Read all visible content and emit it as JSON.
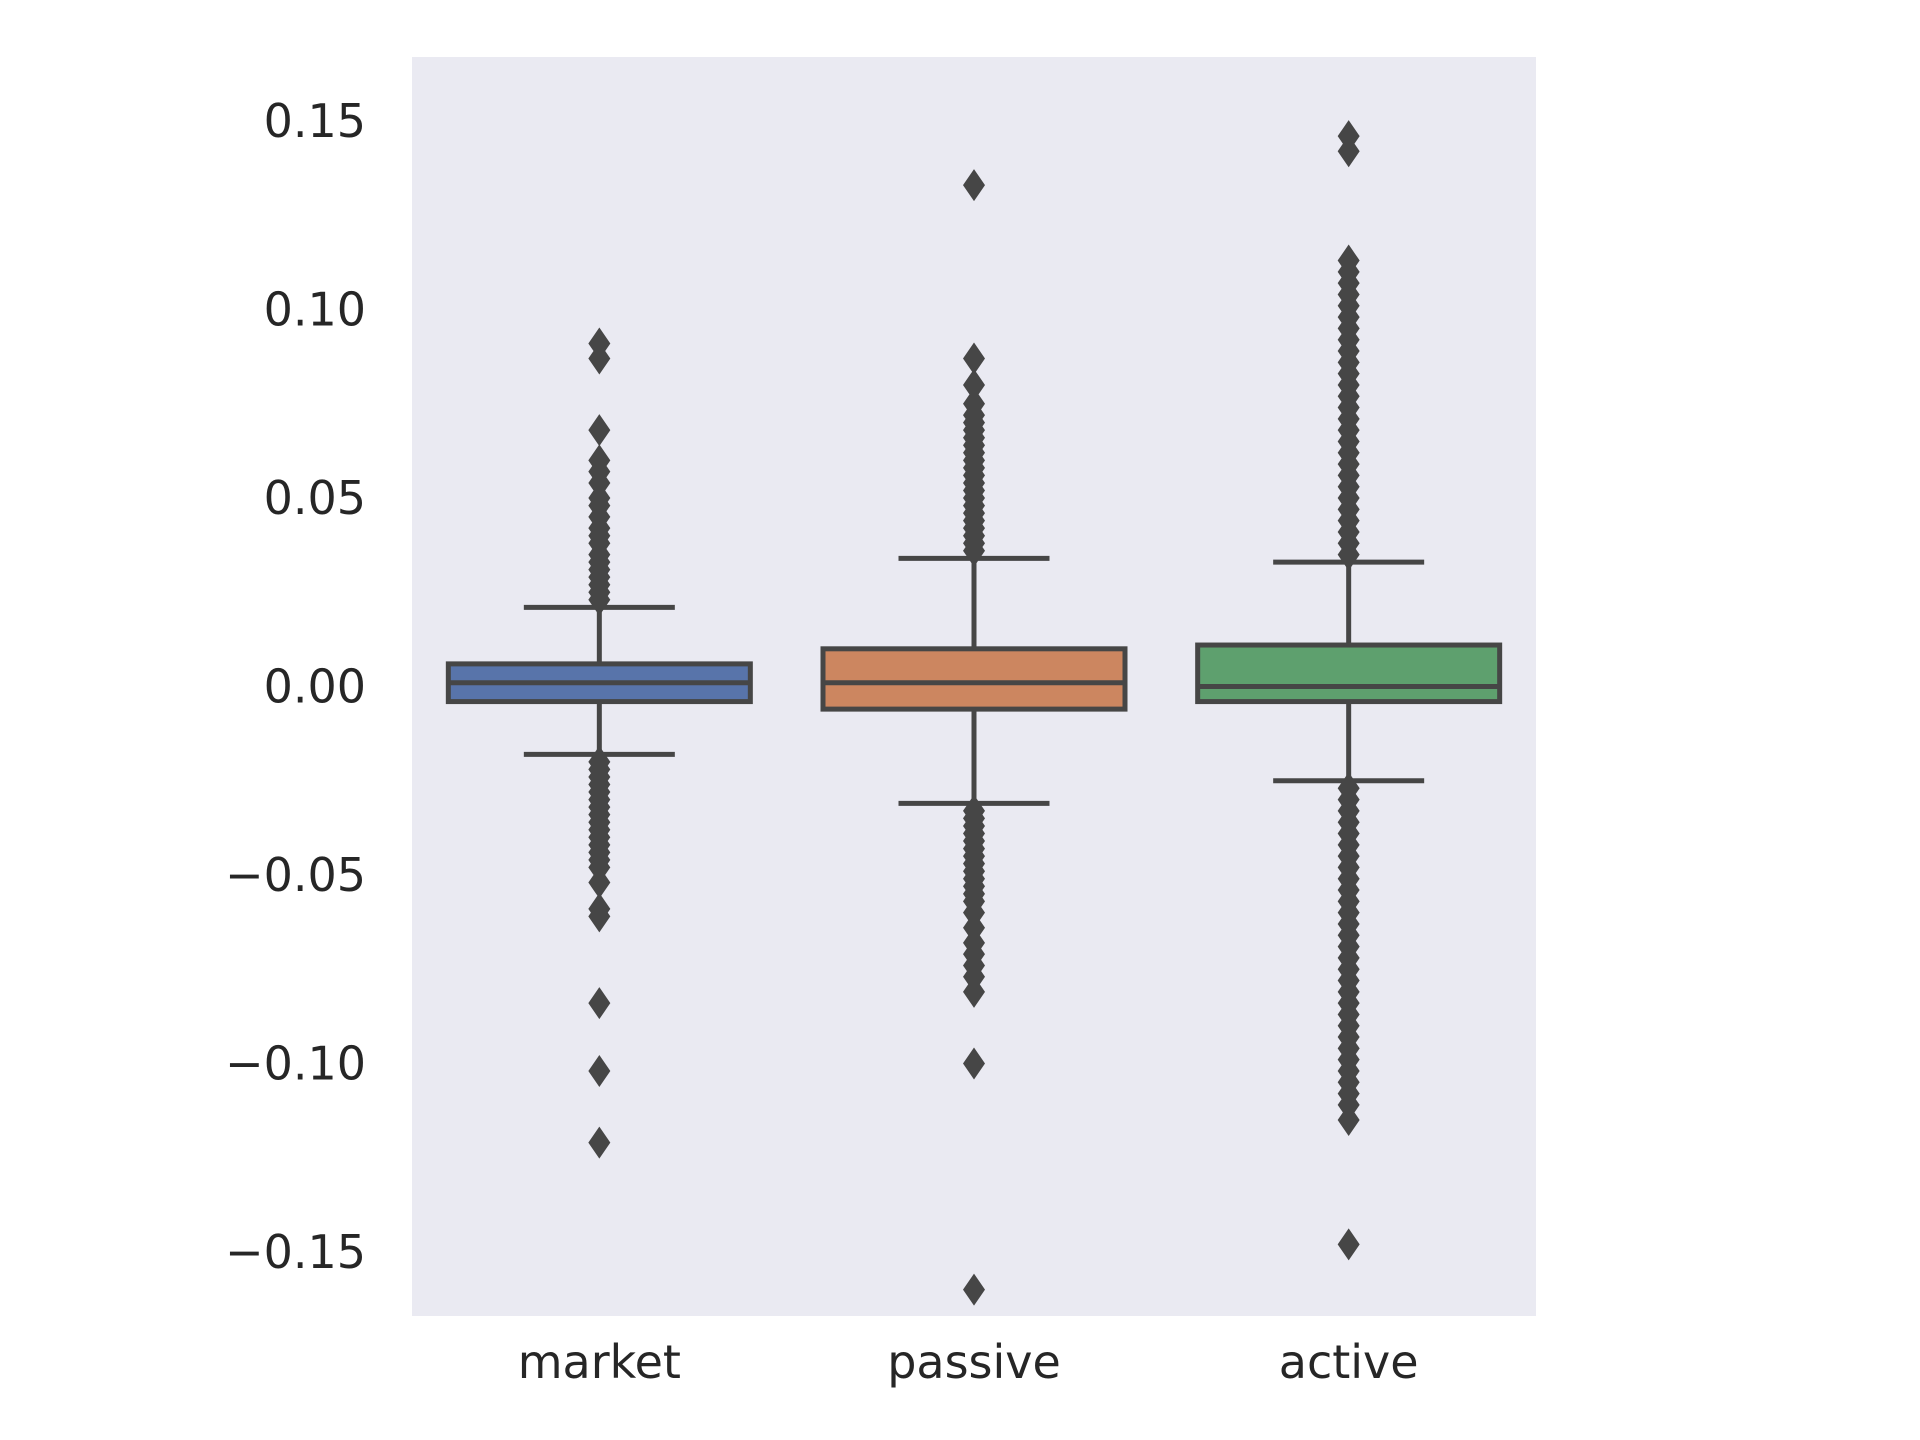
{
  "chart_data": {
    "type": "box",
    "title": "",
    "xlabel": "",
    "ylabel": "",
    "categories": [
      "market",
      "passive",
      "active"
    ],
    "ylim": [
      -0.167,
      0.167
    ],
    "yticks": [
      0.15,
      0.1,
      0.05,
      0.0,
      -0.05,
      -0.1,
      -0.15
    ],
    "ytick_labels": [
      "0.15",
      "0.10",
      "0.05",
      "0.00",
      "−0.05",
      "−0.10",
      "−0.15"
    ],
    "grid": false,
    "colors": {
      "plot_background": "#eaeaf2",
      "edge": "#464646",
      "market": "#5874aa",
      "passive": "#cc8660",
      "active": "#5ea06e"
    },
    "series": [
      {
        "category": "market",
        "whisker_low": -0.018,
        "q1": -0.004,
        "median": 0.001,
        "q3": 0.006,
        "whisker_high": 0.021,
        "outliers_high": [
          0.023,
          0.025,
          0.027,
          0.029,
          0.031,
          0.033,
          0.035,
          0.038,
          0.04,
          0.042,
          0.045,
          0.048,
          0.05,
          0.054,
          0.057,
          0.06,
          0.068,
          0.087,
          0.091
        ],
        "outliers_low": [
          -0.02,
          -0.022,
          -0.024,
          -0.026,
          -0.028,
          -0.03,
          -0.032,
          -0.034,
          -0.036,
          -0.038,
          -0.04,
          -0.042,
          -0.044,
          -0.046,
          -0.048,
          -0.052,
          -0.059,
          -0.061,
          -0.084,
          -0.102,
          -0.121
        ]
      },
      {
        "category": "passive",
        "whisker_low": -0.031,
        "q1": -0.006,
        "median": 0.001,
        "q3": 0.01,
        "whisker_high": 0.034,
        "outliers_high": [
          0.036,
          0.038,
          0.04,
          0.042,
          0.044,
          0.046,
          0.048,
          0.05,
          0.052,
          0.054,
          0.056,
          0.058,
          0.06,
          0.062,
          0.064,
          0.066,
          0.068,
          0.07,
          0.072,
          0.075,
          0.08,
          0.087,
          0.133
        ],
        "outliers_low": [
          -0.033,
          -0.035,
          -0.037,
          -0.039,
          -0.041,
          -0.043,
          -0.045,
          -0.047,
          -0.049,
          -0.051,
          -0.053,
          -0.055,
          -0.057,
          -0.06,
          -0.064,
          -0.068,
          -0.071,
          -0.074,
          -0.077,
          -0.081,
          -0.1,
          -0.16
        ]
      },
      {
        "category": "active",
        "whisker_low": -0.025,
        "q1": -0.004,
        "median": 0.0,
        "q3": 0.011,
        "whisker_high": 0.033,
        "outliers_high": [
          0.035,
          0.038,
          0.041,
          0.044,
          0.047,
          0.05,
          0.053,
          0.056,
          0.059,
          0.062,
          0.065,
          0.068,
          0.071,
          0.074,
          0.077,
          0.08,
          0.083,
          0.086,
          0.089,
          0.092,
          0.095,
          0.098,
          0.101,
          0.104,
          0.107,
          0.11,
          0.113,
          0.142,
          0.146
        ],
        "outliers_low": [
          -0.027,
          -0.03,
          -0.033,
          -0.036,
          -0.039,
          -0.042,
          -0.045,
          -0.048,
          -0.051,
          -0.054,
          -0.057,
          -0.06,
          -0.063,
          -0.066,
          -0.069,
          -0.072,
          -0.075,
          -0.078,
          -0.081,
          -0.084,
          -0.087,
          -0.09,
          -0.093,
          -0.096,
          -0.099,
          -0.102,
          -0.105,
          -0.108,
          -0.111,
          -0.115,
          -0.148
        ]
      }
    ]
  }
}
